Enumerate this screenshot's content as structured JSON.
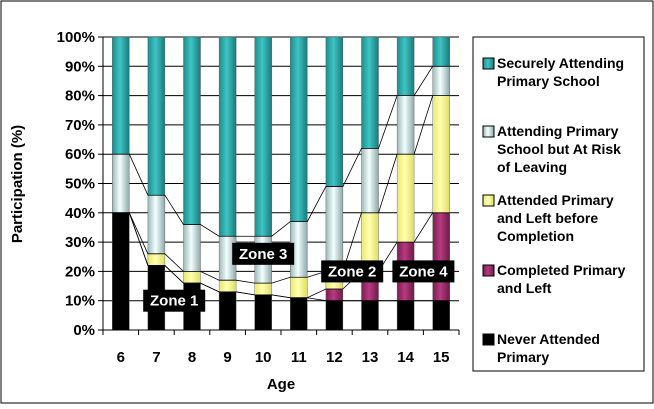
{
  "chart_data": {
    "type": "bar",
    "stacked": true,
    "title": "",
    "xlabel": "Age",
    "ylabel": "Participation (%)",
    "ylim": [
      0,
      100
    ],
    "y_tick_labels": [
      "0%",
      "10%",
      "20%",
      "30%",
      "40%",
      "50%",
      "60%",
      "70%",
      "80%",
      "90%",
      "100%"
    ],
    "categories": [
      "6",
      "7",
      "8",
      "9",
      "10",
      "11",
      "12",
      "13",
      "14",
      "15"
    ],
    "legend_position": "right",
    "series": [
      {
        "name": "Never Attended Primary",
        "color": "#000000",
        "values": [
          40,
          22,
          16,
          13,
          12,
          11,
          10,
          10,
          10,
          10
        ]
      },
      {
        "name": "Completed Primary and Left",
        "color": "#9b2a6a",
        "values": [
          0,
          0,
          0,
          0,
          0,
          0,
          4,
          10,
          20,
          30
        ]
      },
      {
        "name": "Attended Primary and Left before Completion",
        "color": "#ffff99",
        "values": [
          0,
          4,
          4,
          4,
          4,
          7,
          6,
          20,
          30,
          40
        ]
      },
      {
        "name": "Attending Primary School but At Risk of Leaving",
        "color": "#d4f2f2",
        "values": [
          20,
          20,
          16,
          15,
          16,
          19,
          29,
          22,
          20,
          10
        ]
      },
      {
        "name": "Securely Attending Primary School",
        "color": "#2aa5a5",
        "values": [
          40,
          54,
          64,
          68,
          68,
          63,
          51,
          38,
          20,
          10
        ]
      }
    ],
    "annotations": [
      {
        "text": "Zone 1",
        "x": "7.5",
        "y": 10
      },
      {
        "text": "Zone 3",
        "x": "10",
        "y": 26
      },
      {
        "text": "Zone 2",
        "x": "12.5",
        "y": 20
      },
      {
        "text": "Zone 4",
        "x": "14.5",
        "y": 20
      }
    ]
  }
}
